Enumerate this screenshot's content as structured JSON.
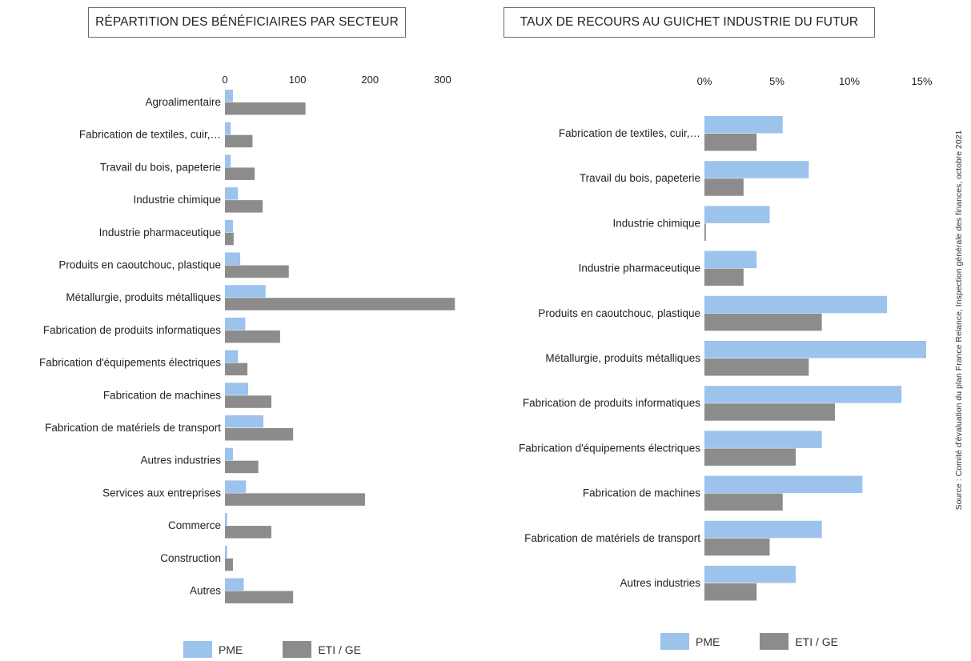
{
  "source": "Source : Comité d'évaluation du plan France Relance, Inspection générale des finances, octobre 2021",
  "colors": {
    "pme": "#9cc3ec",
    "eti": "#8c8c8c"
  },
  "legend": {
    "pme": "PME",
    "eti": "ETI / GE"
  },
  "chart_data": [
    {
      "type": "bar",
      "orientation": "horizontal",
      "title": "RÉPARTITION DES BÉNÉFICIAIRES PAR SECTEUR",
      "xlim": [
        0,
        320
      ],
      "ticks": [
        0,
        100,
        200,
        300
      ],
      "tick_labels": [
        "0",
        "100",
        "200",
        "300"
      ],
      "legend_position": "bottom",
      "categories": [
        "Agroalimentaire",
        "Fabrication de textiles, cuir,…",
        "Travail du bois, papeterie",
        "Industrie chimique",
        "Industrie pharmaceutique",
        "Produits en caoutchouc, plastique",
        "Métallurgie, produits métalliques",
        "Fabrication de produits informatiques",
        "Fabrication d'équipements électriques",
        "Fabrication de machines",
        "Fabrication de matériels de transport",
        "Autres industries",
        "Services aux entreprises",
        "Commerce",
        "Construction",
        "Autres"
      ],
      "series": [
        {
          "name": "PME",
          "values": [
            11,
            8,
            8,
            18,
            11,
            21,
            56,
            28,
            18,
            32,
            53,
            11,
            29,
            3,
            3,
            26
          ]
        },
        {
          "name": "ETI / GE",
          "values": [
            111,
            38,
            41,
            52,
            12,
            88,
            317,
            76,
            31,
            64,
            94,
            46,
            193,
            64,
            11,
            94
          ]
        }
      ]
    },
    {
      "type": "bar",
      "orientation": "horizontal",
      "title": "TAUX DE RECOURS AU GUICHET INDUSTRIE DU FUTUR",
      "xlim": [
        0,
        15.3
      ],
      "ticks": [
        0,
        5,
        10,
        15
      ],
      "tick_labels": [
        "0%",
        "5%",
        "10%",
        "15%"
      ],
      "unit": "%",
      "legend_position": "bottom",
      "categories": [
        "Fabrication de textiles, cuir,…",
        "Travail du bois, papeterie",
        "Industrie chimique",
        "Industrie pharmaceutique",
        "Produits en caoutchouc, plastique",
        "Métallurgie, produits métalliques",
        "Fabrication de produits informatiques",
        "Fabrication d'équipements électriques",
        "Fabrication de machines",
        "Fabrication de matériels de transport",
        "Autres industries"
      ],
      "series": [
        {
          "name": "PME",
          "values": [
            5.4,
            7.2,
            4.5,
            3.6,
            12.6,
            15.3,
            13.6,
            8.1,
            10.9,
            8.1,
            6.3
          ]
        },
        {
          "name": "ETI / GE",
          "values": [
            3.6,
            2.7,
            0.1,
            2.7,
            8.1,
            7.2,
            9.0,
            6.3,
            5.4,
            4.5,
            3.6
          ]
        }
      ]
    }
  ]
}
